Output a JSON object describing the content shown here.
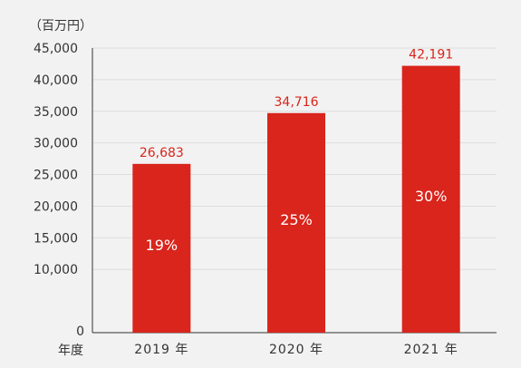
{
  "chart_data": {
    "type": "bar",
    "unit": "（百万円）",
    "x_axis_title": "年度",
    "categories": [
      "2019 年",
      "2020 年",
      "2021 年"
    ],
    "values": [
      26683,
      34716,
      42191
    ],
    "value_labels": [
      "26,683",
      "34,716",
      "42,191"
    ],
    "growth_labels": [
      "19%",
      "25%",
      "30%"
    ],
    "y_ticks": [
      0,
      10000,
      15000,
      20000,
      25000,
      30000,
      35000,
      40000,
      45000
    ],
    "y_tick_labels": [
      "0",
      "10,000",
      "15,000",
      "20,000",
      "25,000",
      "30,000",
      "35,000",
      "40,000",
      "45,000"
    ],
    "ylim": [
      0,
      45000
    ],
    "grid": true,
    "colors": {
      "bar": "#d9251c",
      "grid": "#dddddd",
      "axis": "#333333",
      "background": "#f2f2f2"
    }
  }
}
